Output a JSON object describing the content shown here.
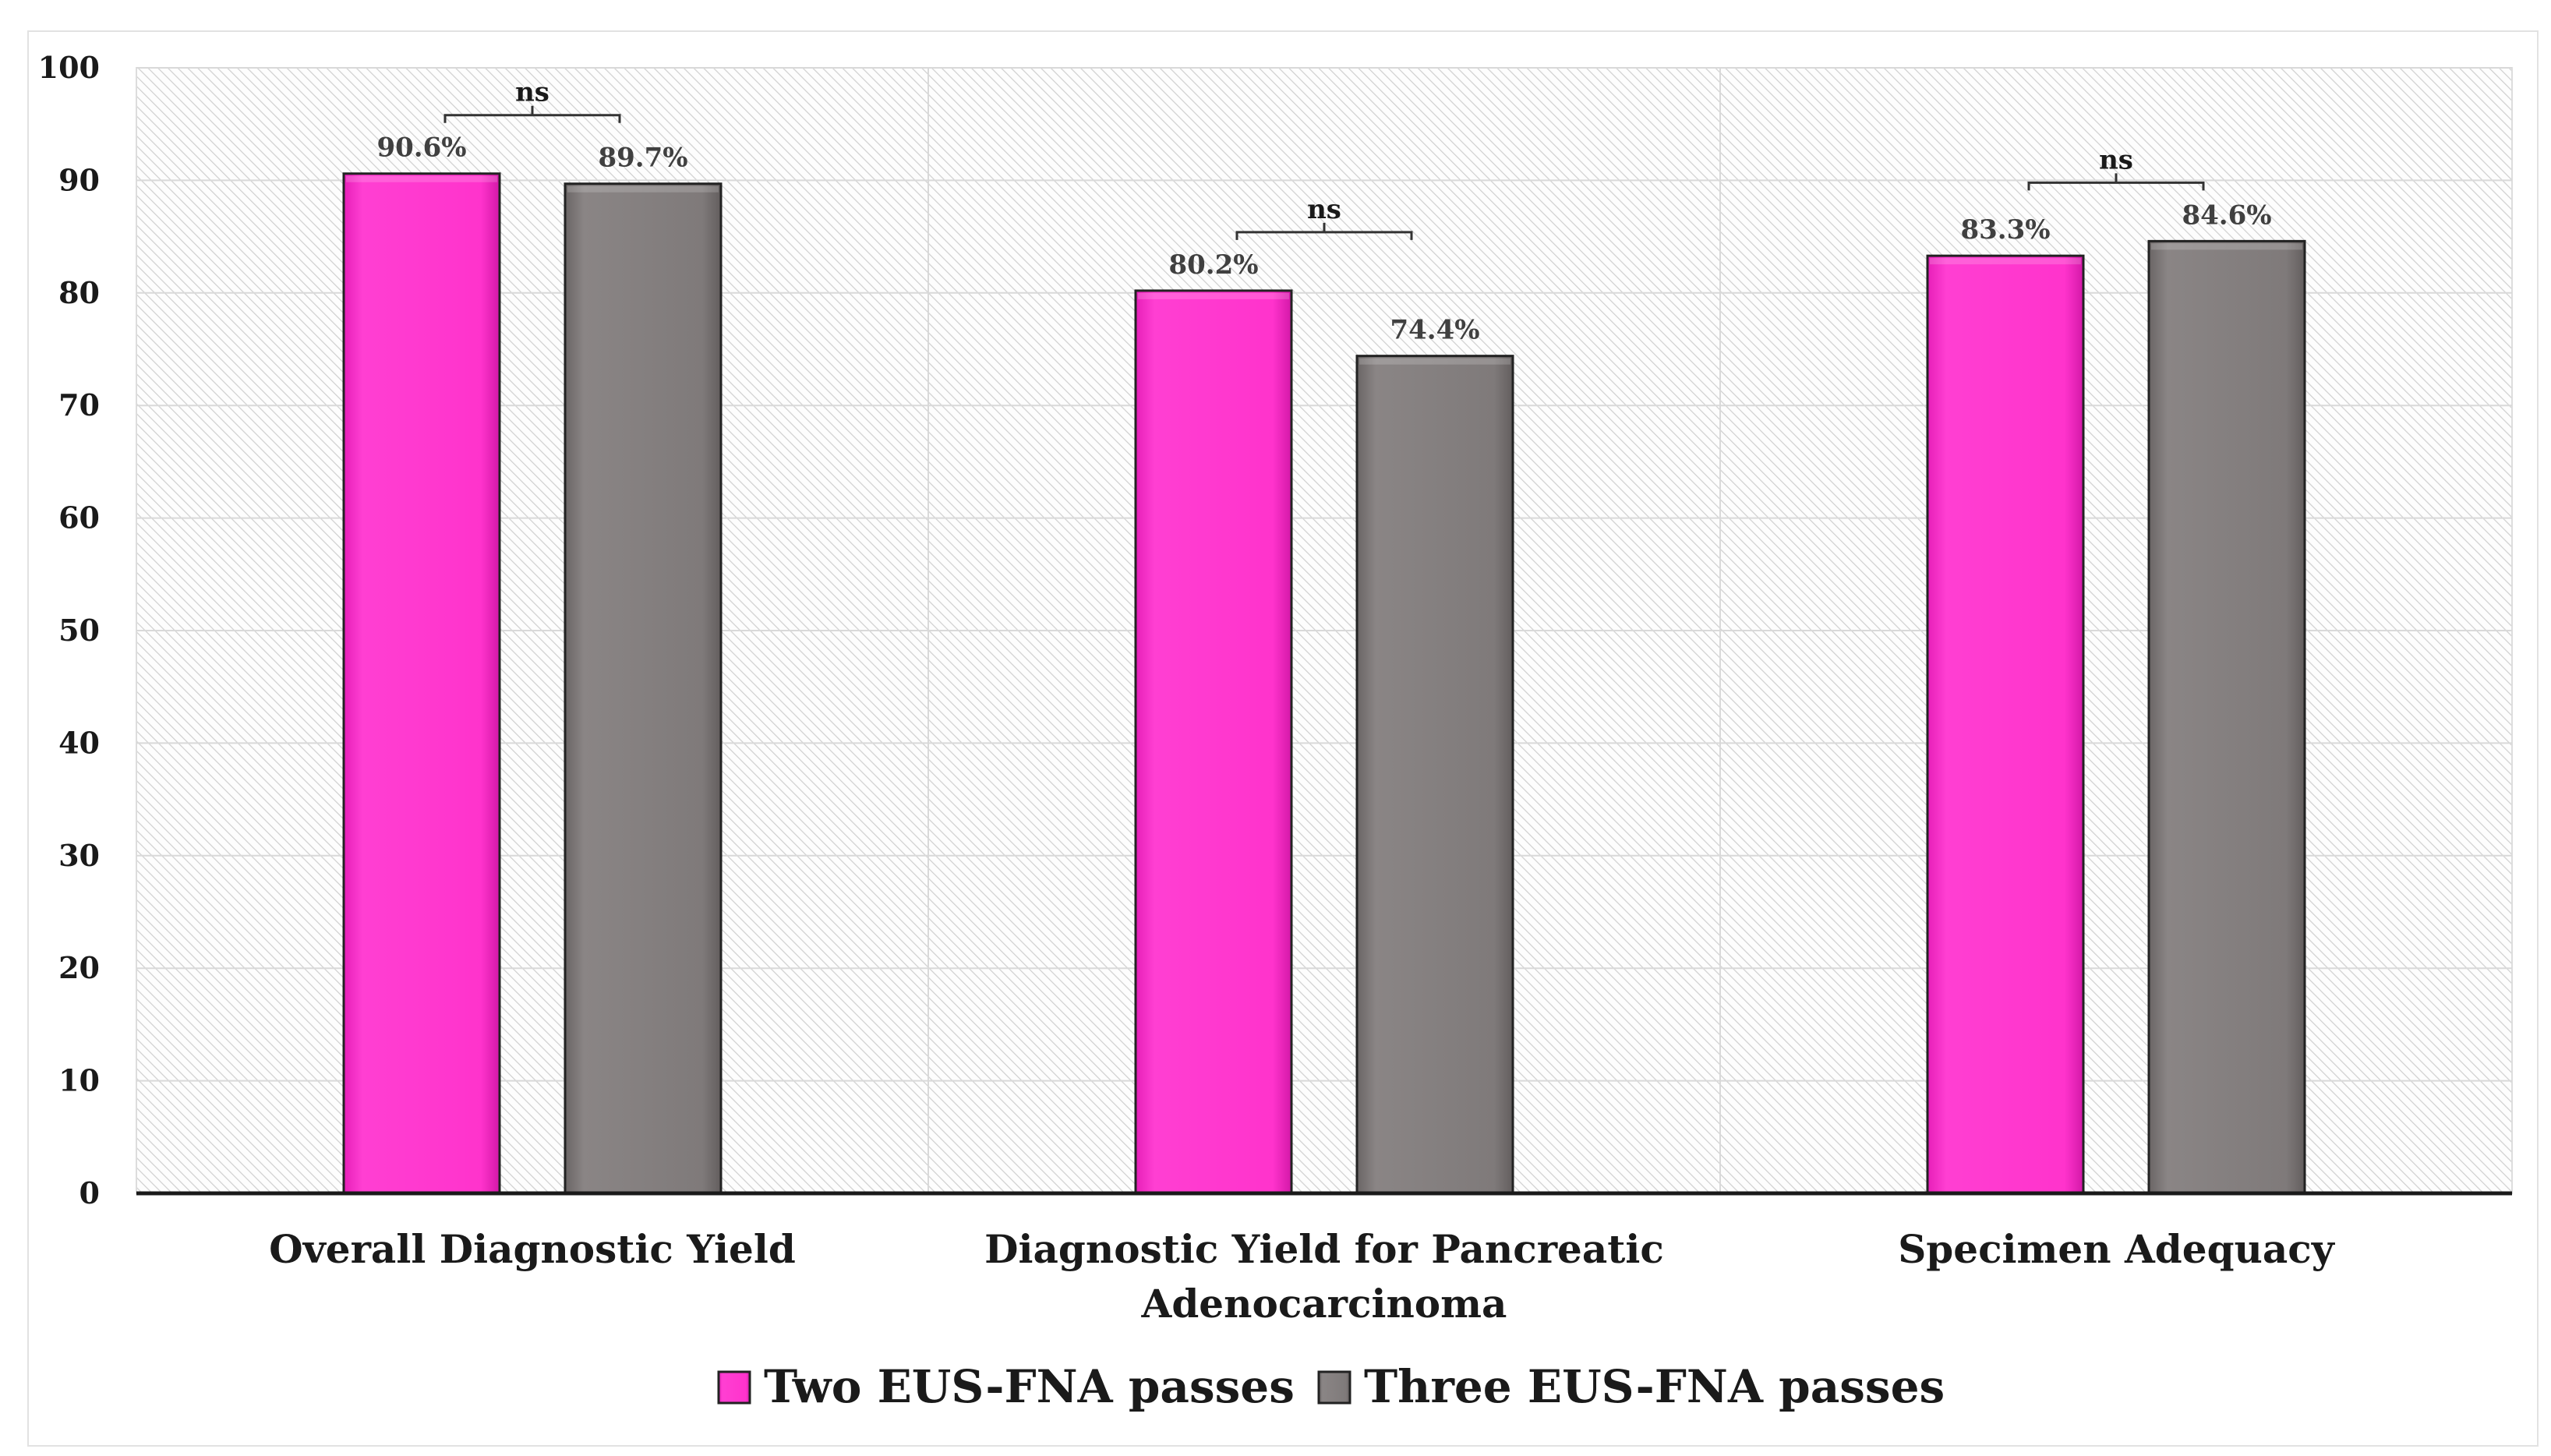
{
  "chart_data": {
    "type": "bar",
    "categories": [
      "Overall Diagnostic Yield",
      "Diagnostic Yield for Pancreatic Adenocarcinoma",
      "Specimen Adequacy"
    ],
    "category_lines": [
      [
        "Overall Diagnostic Yield"
      ],
      [
        "Diagnostic Yield for Pancreatic",
        "Adenocarcinoma"
      ],
      [
        "Specimen Adequacy"
      ]
    ],
    "series": [
      {
        "name": "Two EUS-FNA passes",
        "values": [
          90.6,
          80.2,
          83.3
        ],
        "labels": [
          "90.6%",
          "80.2%",
          "83.3%"
        ],
        "color": "#ff33cc"
      },
      {
        "name": "Three EUS-FNA passes",
        "values": [
          89.7,
          74.4,
          84.6
        ],
        "labels": [
          "89.7%",
          "74.4%",
          "84.6%"
        ],
        "color": "#7f7a7a"
      }
    ],
    "significance": [
      "ns",
      "ns",
      "ns"
    ],
    "yticks": [
      0,
      10,
      20,
      30,
      40,
      50,
      60,
      70,
      80,
      90,
      100
    ],
    "ylim": [
      0,
      100
    ],
    "title": "",
    "xlabel": "",
    "ylabel": "",
    "legend_position": "bottom",
    "grid": true
  }
}
